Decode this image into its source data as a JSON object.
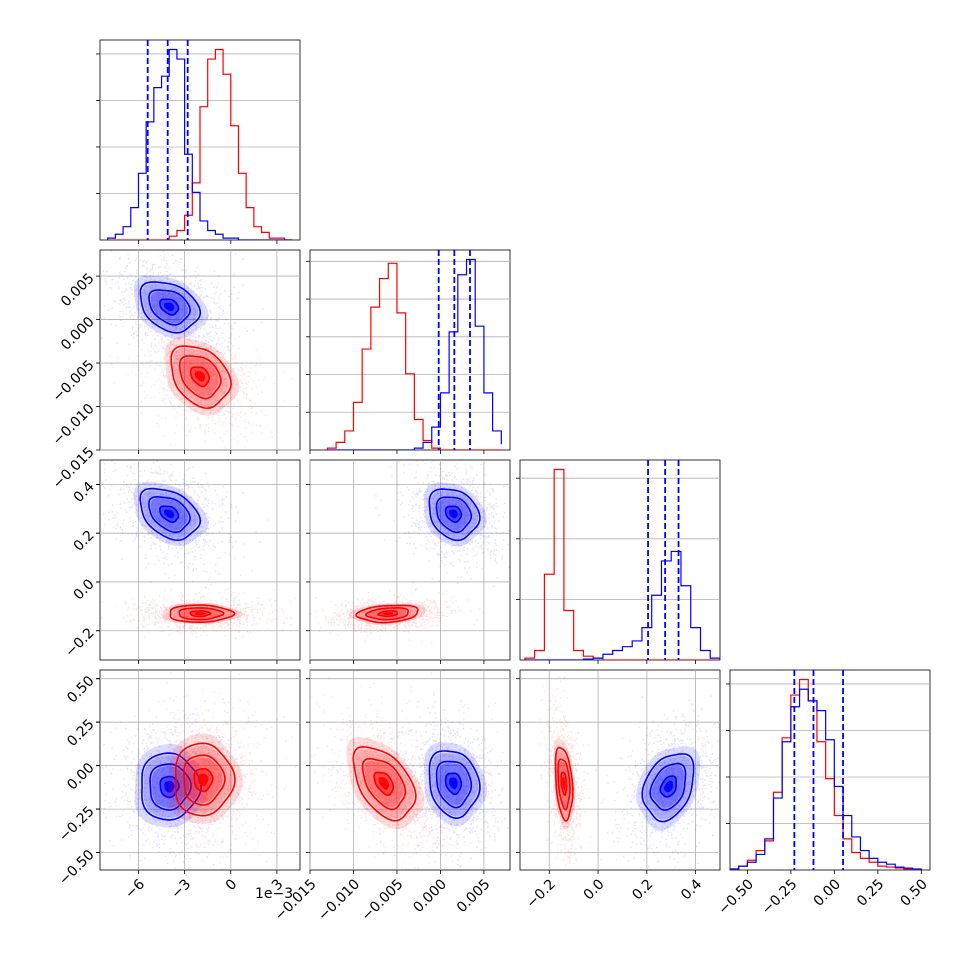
{
  "colors": {
    "series_a": "#0000ff",
    "series_b": "#ff0000",
    "grid": "#b0b0b0"
  },
  "chart_data": {
    "type": "corner",
    "grid": true,
    "x_offset_label": "1e−3",
    "parameters": [
      {
        "range": [
          -8.5,
          4.5
        ],
        "ticks": [
          -6,
          -3,
          0,
          3
        ],
        "tick_labels": [
          "−6",
          "−3",
          "0",
          "3"
        ],
        "hist_bins": [
          -8,
          -7.5,
          -7,
          -6.5,
          -6,
          -5.5,
          -5,
          -4.5,
          -4,
          -3.5,
          -3,
          -2.5,
          -2,
          -1.5,
          -1,
          -0.5,
          0,
          0.5,
          1,
          1.5,
          2,
          2.5,
          3,
          3.5,
          4
        ],
        "hist_series_a": [
          0.01,
          0.03,
          0.07,
          0.17,
          0.35,
          0.62,
          0.8,
          0.86,
          1.0,
          0.95,
          0.45,
          0.25,
          0.1,
          0.05,
          0.03,
          0.01,
          0.01,
          0,
          0,
          0,
          0,
          0,
          0,
          0
        ],
        "hist_series_b": [
          0,
          0,
          0,
          0,
          0,
          0,
          0,
          0,
          0.02,
          0.05,
          0.13,
          0.3,
          0.7,
          0.95,
          1.0,
          0.87,
          0.6,
          0.35,
          0.17,
          0.07,
          0.04,
          0.01,
          0.01,
          0
        ],
        "quantiles_series_a": [
          -5.4,
          -4.1,
          -2.8
        ]
      },
      {
        "range": [
          -0.015,
          0.008
        ],
        "ticks": [
          -0.015,
          -0.01,
          -0.005,
          0.0,
          0.005
        ],
        "tick_labels": [
          "−0.015",
          "−0.010",
          "−0.005",
          "0.000",
          "0.005"
        ],
        "hist_bins": [
          -0.013,
          -0.012,
          -0.011,
          -0.01,
          -0.009,
          -0.008,
          -0.007,
          -0.006,
          -0.005,
          -0.004,
          -0.003,
          -0.002,
          -0.001,
          0.0,
          0.001,
          0.002,
          0.003,
          0.004,
          0.005,
          0.006,
          0.007
        ],
        "hist_series_a": [
          0,
          0,
          0,
          0,
          0,
          0,
          0,
          0,
          0,
          0,
          0.01,
          0.04,
          0.12,
          0.3,
          0.62,
          0.92,
          1.0,
          0.65,
          0.3,
          0.1,
          0.03
        ],
        "hist_series_b": [
          0.01,
          0.04,
          0.1,
          0.25,
          0.53,
          0.75,
          0.9,
          0.98,
          0.72,
          0.4,
          0.16,
          0.05,
          0.01,
          0,
          0,
          0,
          0,
          0,
          0,
          0,
          0
        ],
        "quantiles_series_a": [
          -0.0002,
          0.0016,
          0.0034
        ]
      },
      {
        "range": [
          -0.32,
          0.5
        ],
        "ticks": [
          -0.2,
          0.0,
          0.2,
          0.4
        ],
        "tick_labels": [
          "−0.2",
          "0.0",
          "0.2",
          "0.4"
        ],
        "hist_bins": [
          -0.3,
          -0.26,
          -0.22,
          -0.18,
          -0.14,
          -0.1,
          -0.06,
          -0.02,
          0.02,
          0.06,
          0.1,
          0.14,
          0.18,
          0.22,
          0.26,
          0.3,
          0.34,
          0.38,
          0.42,
          0.46,
          0.5
        ],
        "hist_series_a": [
          0,
          0,
          0,
          0,
          0,
          0,
          0.005,
          0.01,
          0.03,
          0.05,
          0.07,
          0.1,
          0.17,
          0.34,
          0.52,
          0.57,
          0.39,
          0.17,
          0.05,
          0.01
        ],
        "hist_series_b": [
          0.01,
          0.05,
          0.45,
          1.0,
          0.26,
          0.05,
          0.02,
          0.01,
          0,
          0,
          0,
          0,
          0,
          0,
          0,
          0,
          0,
          0,
          0,
          0
        ],
        "quantiles_series_a": [
          0.205,
          0.275,
          0.33
        ]
      },
      {
        "range": [
          -0.6,
          0.55
        ],
        "ticks": [
          -0.5,
          -0.25,
          0.0,
          0.25,
          0.5
        ],
        "tick_labels": [
          "−0.50",
          "−0.25",
          "0.00",
          "0.25",
          "0.50"
        ],
        "hist_bins": [
          -0.6,
          -0.55,
          -0.5,
          -0.45,
          -0.4,
          -0.35,
          -0.3,
          -0.25,
          -0.2,
          -0.15,
          -0.1,
          -0.05,
          0.0,
          0.05,
          0.1,
          0.15,
          0.2,
          0.25,
          0.3,
          0.35,
          0.4,
          0.45,
          0.5
        ],
        "hist_series_a": [
          0.005,
          0.02,
          0.04,
          0.08,
          0.16,
          0.37,
          0.66,
          0.84,
          0.93,
          0.87,
          0.82,
          0.67,
          0.43,
          0.28,
          0.17,
          0.1,
          0.06,
          0.04,
          0.03,
          0.015,
          0.01,
          0.005
        ],
        "hist_series_b": [
          0.005,
          0.02,
          0.05,
          0.1,
          0.15,
          0.4,
          0.68,
          0.9,
          0.98,
          0.87,
          0.66,
          0.47,
          0.28,
          0.16,
          0.09,
          0.06,
          0.04,
          0.02,
          0.015,
          0.01,
          0.005,
          0
        ],
        "quantiles_series_a": [
          -0.23,
          -0.12,
          0.05
        ]
      }
    ],
    "pairs": [
      {
        "x": 0,
        "y": 1,
        "series_a": {
          "center": [
            -4.0,
            0.0015
          ],
          "sigma": [
            1.2,
            0.0018
          ],
          "corr": -0.3
        },
        "series_b": {
          "center": [
            -2.0,
            -0.0065
          ],
          "sigma": [
            1.2,
            0.0022
          ],
          "corr": -0.3
        }
      },
      {
        "x": 0,
        "y": 2,
        "series_a": {
          "center": [
            -4.0,
            0.28
          ],
          "sigma": [
            1.2,
            0.065
          ],
          "corr": -0.35
        },
        "series_b": {
          "center": [
            -2.0,
            -0.13
          ],
          "sigma": [
            1.3,
            0.022
          ],
          "corr": 0.0
        }
      },
      {
        "x": 1,
        "y": 2,
        "series_a": {
          "center": [
            0.0015,
            0.28
          ],
          "sigma": [
            0.0018,
            0.065
          ],
          "corr": -0.2
        },
        "series_b": {
          "center": [
            -0.006,
            -0.13
          ],
          "sigma": [
            0.0022,
            0.022
          ],
          "corr": 0.2
        }
      },
      {
        "x": 0,
        "y": 3,
        "series_a": {
          "center": [
            -4.0,
            -0.12
          ],
          "sigma": [
            1.2,
            0.12
          ],
          "corr": 0.0
        },
        "series_b": {
          "center": [
            -1.8,
            -0.08
          ],
          "sigma": [
            1.2,
            0.13
          ],
          "corr": 0.0
        }
      },
      {
        "x": 1,
        "y": 3,
        "series_a": {
          "center": [
            0.0015,
            -0.1
          ],
          "sigma": [
            0.0018,
            0.12
          ],
          "corr": -0.15
        },
        "series_b": {
          "center": [
            -0.0065,
            -0.1
          ],
          "sigma": [
            0.0022,
            0.13
          ],
          "corr": -0.45
        }
      },
      {
        "x": 2,
        "y": 3,
        "series_a": {
          "center": [
            0.29,
            -0.12
          ],
          "sigma": [
            0.065,
            0.12
          ],
          "corr": 0.3
        },
        "series_b": {
          "center": [
            -0.14,
            -0.1
          ],
          "sigma": [
            0.022,
            0.13
          ],
          "corr": -0.3
        }
      }
    ]
  }
}
